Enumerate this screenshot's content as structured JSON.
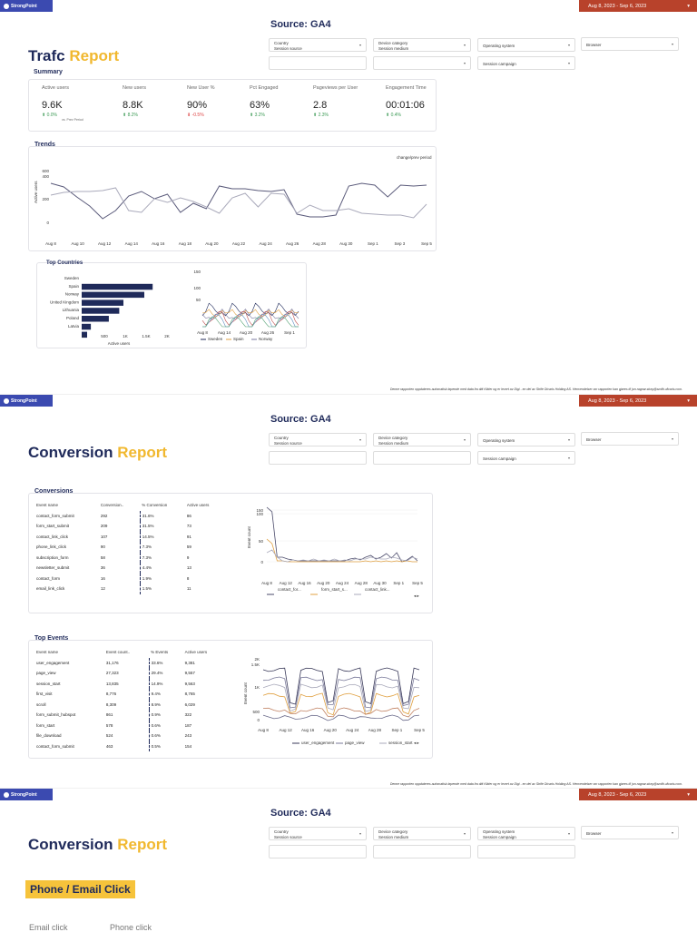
{
  "brand": {
    "logo_text": "StrongPoint"
  },
  "date_range": "Aug 8, 2023 - Sep 6, 2023",
  "source_title": "Source: GA4",
  "filters": {
    "country": "Country",
    "device_category": "Device category",
    "session_source": "Session source",
    "session_medium": "Session medium",
    "operating_system": "Operating system",
    "browser": "Browser",
    "session_campaign": "Session campaign"
  },
  "traffic": {
    "title_main": "Trafc",
    "title_accent": "Report",
    "summary_title": "Summary",
    "metrics": [
      {
        "label": "Active users",
        "value": "9.6K",
        "delta": "0.0%",
        "dir": "up",
        "note": "vs. Prev Period"
      },
      {
        "label": "New users",
        "value": "8.8K",
        "delta": "8.2%",
        "dir": "up"
      },
      {
        "label": "New User %",
        "value": "90%",
        "delta": "-0.5%",
        "dir": "down"
      },
      {
        "label": "Pct Engaged",
        "value": "63%",
        "delta": "3.2%",
        "dir": "up"
      },
      {
        "label": "Pageviews per User",
        "value": "2.8",
        "delta": "2.3%",
        "dir": "up"
      },
      {
        "label": "Engagement Time",
        "value": "00:01:06",
        "delta": "0.4%",
        "dir": "up"
      }
    ],
    "trends_title": "Trends",
    "trends_ylabel": "Active users",
    "trends_legend": "change/prev period",
    "trends_yticks": [
      "600",
      "400",
      "200",
      "0"
    ],
    "trends_xticks": [
      "Aug 8",
      "Aug 10",
      "Aug 12",
      "Aug 14",
      "Aug 16",
      "Aug 18",
      "Aug 20",
      "Aug 22",
      "Aug 24",
      "Aug 26",
      "Aug 28",
      "Aug 30",
      "Sep 1",
      "Sep 3",
      "Sep 5"
    ],
    "top_countries_title": "Top Countries",
    "countries": [
      {
        "name": "Sweden",
        "value": 0
      },
      {
        "name": "Spain",
        "value": 1700
      },
      {
        "name": "Norway",
        "value": 1500
      },
      {
        "name": "United Kingdom",
        "value": 1000
      },
      {
        "name": "Lithuania",
        "value": 900
      },
      {
        "name": "Poland",
        "value": 650
      },
      {
        "name": "Latvia",
        "value": 220
      },
      {
        "name": "",
        "value": 130
      }
    ],
    "countries_xticks": [
      "0",
      "500",
      "1K",
      "1.5K",
      "2K"
    ],
    "countries_xlabel": "Active users",
    "country_trend_yticks": [
      "150",
      "100",
      "50"
    ],
    "country_trend_xticks": [
      "Aug 8",
      "Aug 14",
      "Aug 20",
      "Aug 26",
      "Sep 1"
    ],
    "country_trend_legend": [
      "Sweden",
      "Spain",
      "Norway"
    ]
  },
  "footer_note": "Denne rapporten oppdateres automatisk løpende med data fra ditt Kilder og er levert av Digi - en del av Strife Dicaris Holding AS. Henvendelser om rapporten kan gjøres til jon.ragnar.stray@smith-dicaris.com.",
  "conversion": {
    "title_main": "Conversion",
    "title_accent": "Report",
    "conversions_title": "Conversions",
    "conv_headers": [
      "Event name",
      "Conversion..",
      "% Conversion",
      "Active users"
    ],
    "conversions": [
      [
        "contact_form_submit",
        "292",
        "31.6%",
        "86"
      ],
      [
        "form_start_submit",
        "209",
        "31.5%",
        "73"
      ],
      [
        "contact_link_click",
        "107",
        "14.5%",
        "91"
      ],
      [
        "phone_link_click",
        "90",
        "7.3%",
        "59"
      ],
      [
        "subscription_form",
        "58",
        "7.3%",
        "9"
      ],
      [
        "newsletter_submit",
        "36",
        "4.4%",
        "13"
      ],
      [
        "contact_form",
        "16",
        "1.9%",
        "8"
      ],
      [
        "email_link_click",
        "12",
        "1.5%",
        "11"
      ]
    ],
    "conv_chart_ylabel": "Event count",
    "conv_chart_yticks": [
      "150",
      "100",
      "50",
      "0"
    ],
    "conv_chart_xticks": [
      "Aug 8",
      "Aug 12",
      "Aug 16",
      "Aug 20",
      "Aug 24",
      "Aug 28",
      "Aug 30",
      "Sep 1",
      "Sep 5"
    ],
    "conv_chart_legend": [
      "contact_for...",
      "form_start_s...",
      "contact_link..."
    ],
    "top_events_title": "Top Events",
    "event_headers": [
      "Event name",
      "Event count..",
      "% Events",
      "Active users"
    ],
    "events": [
      [
        "user_engagement",
        "31,176",
        "33.6%",
        "9,381"
      ],
      [
        "page_view",
        "27,323",
        "29.4%",
        "9,557"
      ],
      [
        "session_start",
        "13,835",
        "14.9%",
        "9,563"
      ],
      [
        "first_visit",
        "8,776",
        "9.4%",
        "8,765"
      ],
      [
        "scroll",
        "8,309",
        "8.9%",
        "6,029"
      ],
      [
        "form_submit_hubspot",
        "861",
        "0.9%",
        "322"
      ],
      [
        "form_start",
        "578",
        "0.6%",
        "187"
      ],
      [
        "file_download",
        "524",
        "0.6%",
        "243"
      ],
      [
        "contact_form_submit",
        "463",
        "0.5%",
        "154"
      ]
    ],
    "event_chart_ylabel": "Event count",
    "event_chart_yticks": [
      "2K",
      "1.5K",
      "1K",
      "500",
      "0"
    ],
    "event_chart_xticks": [
      "Aug 8",
      "Aug 12",
      "Aug 16",
      "Aug 20",
      "Aug 24",
      "Aug 28",
      "Sep 1",
      "Sep 5"
    ],
    "event_chart_legend": [
      "user_engagement",
      "page_view",
      "session_start"
    ],
    "highlight": "Phone / Email Click",
    "sub_email": "Email click",
    "sub_phone": "Phone click"
  },
  "colors": {
    "navy": "#1f2a5a",
    "accent": "#f1b82f",
    "date_bg": "#b8422b",
    "logo_bg": "#3b4ab0"
  }
}
